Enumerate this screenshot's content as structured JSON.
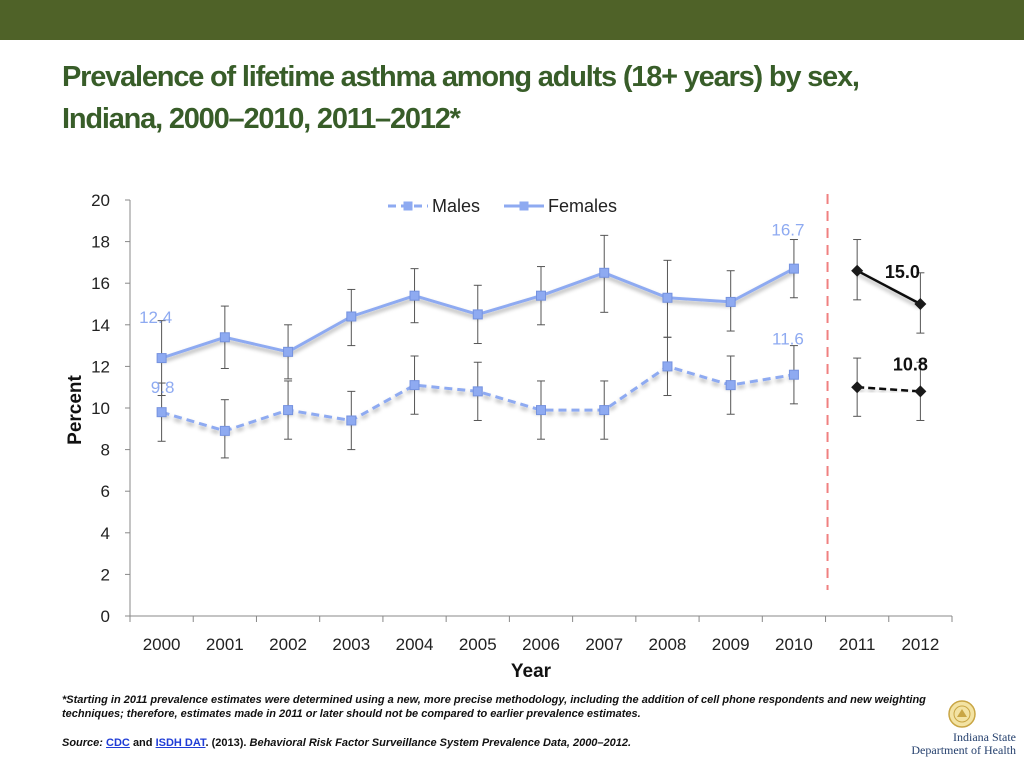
{
  "slide": {
    "title_line1": "Prevalence of lifetime asthma among adults (18+ years) by sex,",
    "title_line2": "Indiana, 2000–2010, 2011–2012*",
    "footnote": "*Starting in 2011 prevalence estimates were determined using a new, more precise methodology, including the addition of cell phone respondents and new weighting techniques; therefore, estimates made in 2011 or later should not be compared to earlier prevalence estimates.",
    "source": {
      "label": "Source:",
      "link1": "CDC",
      "and": "and",
      "link2": "ISDH DAT",
      "year": ". (2013).",
      "title": "Behavioral Risk Factor Surveillance System Prevalence Data, 2000–2012."
    },
    "logo": {
      "line1": "Indiana State",
      "line2": "Department of Health"
    },
    "colors": {
      "header_bar": "#4f6228",
      "title": "#385d29",
      "series_line": "#8eaaf1",
      "new_method_line": "#111111",
      "separator": "#f08080"
    }
  },
  "chart_data": {
    "type": "line",
    "xlabel": "Year",
    "ylabel": "Percent",
    "ylim": [
      0,
      20
    ],
    "yticks": [
      0,
      2,
      4,
      6,
      8,
      10,
      12,
      14,
      16,
      18,
      20
    ],
    "categories": [
      "2000",
      "2001",
      "2002",
      "2003",
      "2004",
      "2005",
      "2006",
      "2007",
      "2008",
      "2009",
      "2010",
      "2011",
      "2012"
    ],
    "legend_position": "top-center",
    "grid": false,
    "method_break_after": "2010",
    "series": [
      {
        "name": "Males",
        "style": "dashed",
        "color": "#8eaaf1",
        "values": [
          9.8,
          8.9,
          9.9,
          9.4,
          11.1,
          10.8,
          9.9,
          9.9,
          12.0,
          11.1,
          11.6,
          null,
          null
        ],
        "ci_low": [
          8.4,
          7.6,
          8.5,
          8.0,
          9.7,
          9.4,
          8.5,
          8.5,
          10.6,
          9.7,
          10.2,
          null,
          null
        ],
        "ci_high": [
          11.2,
          10.4,
          11.3,
          10.8,
          12.5,
          12.2,
          11.3,
          11.3,
          13.4,
          12.5,
          13.0,
          null,
          null
        ]
      },
      {
        "name": "Females",
        "style": "solid",
        "color": "#8eaaf1",
        "values": [
          12.4,
          13.4,
          12.7,
          14.4,
          15.4,
          14.5,
          15.4,
          16.5,
          15.3,
          15.1,
          16.7,
          null,
          null
        ],
        "ci_low": [
          10.6,
          11.9,
          11.4,
          13.0,
          14.1,
          13.1,
          14.0,
          14.6,
          13.4,
          13.7,
          15.3,
          null,
          null
        ],
        "ci_high": [
          14.2,
          14.9,
          14.0,
          15.7,
          16.7,
          15.9,
          16.8,
          18.3,
          17.1,
          16.6,
          18.1,
          null,
          null
        ]
      },
      {
        "style": "dashed",
        "color": "#111111",
        "values": [
          null,
          null,
          null,
          null,
          null,
          null,
          null,
          null,
          null,
          null,
          null,
          11.0,
          10.8
        ],
        "ci_low": [
          null,
          null,
          null,
          null,
          null,
          null,
          null,
          null,
          null,
          null,
          null,
          9.6,
          9.4
        ],
        "ci_high": [
          null,
          null,
          null,
          null,
          null,
          null,
          null,
          null,
          null,
          null,
          null,
          12.4,
          12.2
        ]
      },
      {
        "style": "solid",
        "color": "#111111",
        "values": [
          null,
          null,
          null,
          null,
          null,
          null,
          null,
          null,
          null,
          null,
          null,
          16.6,
          15.0
        ],
        "ci_low": [
          null,
          null,
          null,
          null,
          null,
          null,
          null,
          null,
          null,
          null,
          null,
          15.2,
          13.6
        ],
        "ci_high": [
          null,
          null,
          null,
          null,
          null,
          null,
          null,
          null,
          null,
          null,
          null,
          18.1,
          16.5
        ]
      }
    ],
    "annotations": [
      {
        "text": "12.4",
        "series": 1,
        "index": 0,
        "color": "#8eaaf1"
      },
      {
        "text": "9.8",
        "series": 0,
        "index": 0,
        "color": "#8eaaf1"
      },
      {
        "text": "16.7",
        "series": 1,
        "index": 10,
        "color": "#8eaaf1"
      },
      {
        "text": "11.6",
        "series": 0,
        "index": 10,
        "color": "#8eaaf1"
      },
      {
        "text": "15.0",
        "series": 3,
        "index": 12,
        "color": "#111111"
      },
      {
        "text": "10.8",
        "series": 2,
        "index": 12,
        "color": "#111111"
      }
    ]
  }
}
